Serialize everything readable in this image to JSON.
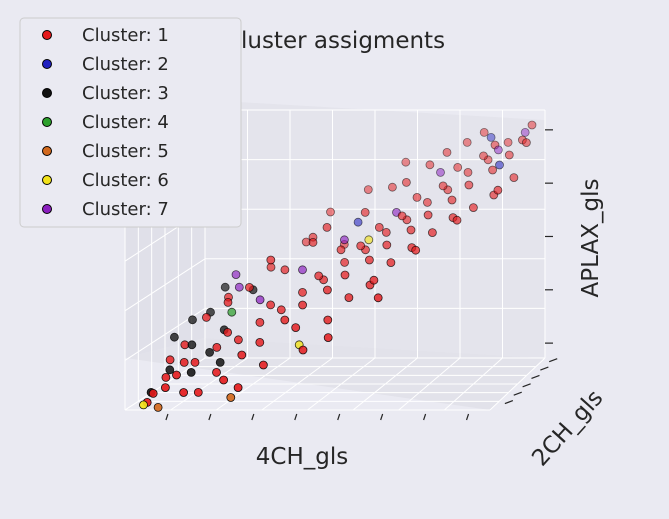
{
  "chart_data": {
    "type": "scatter",
    "projection": "3d",
    "title": "Cluster assigments",
    "xlabel": "4CH_gls",
    "ylabel": "2CH_gls",
    "zlabel": "APLAX_gls",
    "grid": true,
    "legend_position": "top-left",
    "legend": [
      {
        "label": "Cluster: 1",
        "color": "#e41a1c"
      },
      {
        "label": "Cluster: 2",
        "color": "#1f1fbf"
      },
      {
        "label": "Cluster: 3",
        "color": "#111111"
      },
      {
        "label": "Cluster: 4",
        "color": "#2ca02c"
      },
      {
        "label": "Cluster: 5",
        "color": "#d2691e"
      },
      {
        "label": "Cluster: 6",
        "color": "#f2e21a"
      },
      {
        "label": "Cluster: 7",
        "color": "#8b1fbf"
      }
    ],
    "points": [
      {
        "x": 0.05,
        "y": 0.05,
        "z": 0.02,
        "c": 1
      },
      {
        "x": 0.06,
        "y": 0.08,
        "z": 0.05,
        "c": 1
      },
      {
        "x": 0.1,
        "y": 0.05,
        "z": 0.08,
        "c": 1
      },
      {
        "x": 0.08,
        "y": 0.15,
        "z": 0.1,
        "c": 1
      },
      {
        "x": 0.12,
        "y": 0.1,
        "z": 0.12,
        "c": 1
      },
      {
        "x": 0.15,
        "y": 0.2,
        "z": 0.15,
        "c": 1
      },
      {
        "x": 0.18,
        "y": 0.1,
        "z": 0.05,
        "c": 1
      },
      {
        "x": 0.2,
        "y": 0.25,
        "z": 0.2,
        "c": 1
      },
      {
        "x": 0.22,
        "y": 0.15,
        "z": 0.12,
        "c": 1
      },
      {
        "x": 0.25,
        "y": 0.3,
        "z": 0.22,
        "c": 1
      },
      {
        "x": 0.28,
        "y": 0.2,
        "z": 0.18,
        "c": 1
      },
      {
        "x": 0.3,
        "y": 0.35,
        "z": 0.28,
        "c": 1
      },
      {
        "x": 0.32,
        "y": 0.25,
        "z": 0.22,
        "c": 1
      },
      {
        "x": 0.35,
        "y": 0.4,
        "z": 0.32,
        "c": 1
      },
      {
        "x": 0.38,
        "y": 0.3,
        "z": 0.3,
        "c": 1
      },
      {
        "x": 0.4,
        "y": 0.45,
        "z": 0.38,
        "c": 1
      },
      {
        "x": 0.42,
        "y": 0.35,
        "z": 0.35,
        "c": 1
      },
      {
        "x": 0.45,
        "y": 0.5,
        "z": 0.42,
        "c": 1
      },
      {
        "x": 0.48,
        "y": 0.4,
        "z": 0.4,
        "c": 1
      },
      {
        "x": 0.5,
        "y": 0.55,
        "z": 0.48,
        "c": 1
      },
      {
        "x": 0.52,
        "y": 0.45,
        "z": 0.45,
        "c": 1
      },
      {
        "x": 0.55,
        "y": 0.6,
        "z": 0.52,
        "c": 1
      },
      {
        "x": 0.58,
        "y": 0.5,
        "z": 0.5,
        "c": 1
      },
      {
        "x": 0.6,
        "y": 0.65,
        "z": 0.58,
        "c": 1
      },
      {
        "x": 0.62,
        "y": 0.55,
        "z": 0.55,
        "c": 1
      },
      {
        "x": 0.65,
        "y": 0.7,
        "z": 0.62,
        "c": 1
      },
      {
        "x": 0.68,
        "y": 0.6,
        "z": 0.6,
        "c": 1
      },
      {
        "x": 0.7,
        "y": 0.75,
        "z": 0.68,
        "c": 1
      },
      {
        "x": 0.72,
        "y": 0.65,
        "z": 0.65,
        "c": 1
      },
      {
        "x": 0.75,
        "y": 0.8,
        "z": 0.72,
        "c": 1
      },
      {
        "x": 0.78,
        "y": 0.7,
        "z": 0.7,
        "c": 1
      },
      {
        "x": 0.8,
        "y": 0.85,
        "z": 0.78,
        "c": 1
      },
      {
        "x": 0.82,
        "y": 0.75,
        "z": 0.75,
        "c": 1
      },
      {
        "x": 0.85,
        "y": 0.9,
        "z": 0.82,
        "c": 1
      },
      {
        "x": 0.88,
        "y": 0.8,
        "z": 0.8,
        "c": 1
      },
      {
        "x": 0.9,
        "y": 0.95,
        "z": 0.88,
        "c": 1
      },
      {
        "x": 0.92,
        "y": 0.85,
        "z": 0.85,
        "c": 1
      },
      {
        "x": 0.95,
        "y": 0.9,
        "z": 0.9,
        "c": 1
      },
      {
        "x": 0.97,
        "y": 0.95,
        "z": 0.95,
        "c": 1
      },
      {
        "x": 0.3,
        "y": 0.5,
        "z": 0.5,
        "c": 1
      },
      {
        "x": 0.4,
        "y": 0.6,
        "z": 0.55,
        "c": 1
      },
      {
        "x": 0.5,
        "y": 0.3,
        "z": 0.3,
        "c": 1
      },
      {
        "x": 0.55,
        "y": 0.35,
        "z": 0.38,
        "c": 1
      },
      {
        "x": 0.6,
        "y": 0.4,
        "z": 0.42,
        "c": 1
      },
      {
        "x": 0.65,
        "y": 0.45,
        "z": 0.5,
        "c": 1
      },
      {
        "x": 0.7,
        "y": 0.5,
        "z": 0.55,
        "c": 1
      },
      {
        "x": 0.75,
        "y": 0.55,
        "z": 0.6,
        "c": 1
      },
      {
        "x": 0.8,
        "y": 0.6,
        "z": 0.65,
        "c": 1
      },
      {
        "x": 0.35,
        "y": 0.15,
        "z": 0.15,
        "c": 1
      },
      {
        "x": 0.45,
        "y": 0.2,
        "z": 0.2,
        "c": 1
      },
      {
        "x": 0.25,
        "y": 0.45,
        "z": 0.4,
        "c": 1
      },
      {
        "x": 0.15,
        "y": 0.35,
        "z": 0.3,
        "c": 1
      },
      {
        "x": 0.2,
        "y": 0.4,
        "z": 0.35,
        "c": 1
      },
      {
        "x": 0.33,
        "y": 0.55,
        "z": 0.45,
        "c": 1
      },
      {
        "x": 0.43,
        "y": 0.65,
        "z": 0.6,
        "c": 1
      },
      {
        "x": 0.53,
        "y": 0.7,
        "z": 0.65,
        "c": 1
      },
      {
        "x": 0.63,
        "y": 0.8,
        "z": 0.75,
        "c": 1
      },
      {
        "x": 0.73,
        "y": 0.9,
        "z": 0.85,
        "c": 1
      },
      {
        "x": 0.83,
        "y": 0.95,
        "z": 0.92,
        "c": 1
      },
      {
        "x": 0.45,
        "y": 0.8,
        "z": 0.5,
        "c": 1
      },
      {
        "x": 0.9,
        "y": 0.7,
        "z": 0.72,
        "c": 1
      },
      {
        "x": 0.95,
        "y": 0.75,
        "z": 0.78,
        "c": 1
      },
      {
        "x": 0.85,
        "y": 0.65,
        "z": 0.68,
        "c": 1
      },
      {
        "x": 0.58,
        "y": 0.85,
        "z": 0.72,
        "c": 1
      },
      {
        "x": 0.68,
        "y": 0.9,
        "z": 0.8,
        "c": 1
      },
      {
        "x": 0.78,
        "y": 0.95,
        "z": 0.88,
        "c": 1
      },
      {
        "x": 0.38,
        "y": 0.7,
        "z": 0.55,
        "c": 1
      },
      {
        "x": 0.28,
        "y": 0.6,
        "z": 0.45,
        "c": 1
      },
      {
        "x": 0.18,
        "y": 0.5,
        "z": 0.35,
        "c": 1
      },
      {
        "x": 0.1,
        "y": 0.3,
        "z": 0.2,
        "c": 1
      },
      {
        "x": 0.07,
        "y": 0.25,
        "z": 0.15,
        "c": 1
      },
      {
        "x": 0.5,
        "y": 0.9,
        "z": 0.7,
        "c": 1
      },
      {
        "x": 0.6,
        "y": 0.95,
        "z": 0.8,
        "c": 1
      },
      {
        "x": 0.42,
        "y": 0.25,
        "z": 0.28,
        "c": 1
      },
      {
        "x": 0.62,
        "y": 0.35,
        "z": 0.45,
        "c": 1
      },
      {
        "x": 0.72,
        "y": 0.45,
        "z": 0.55,
        "c": 1
      },
      {
        "x": 0.82,
        "y": 0.55,
        "z": 0.65,
        "c": 1
      },
      {
        "x": 0.92,
        "y": 0.65,
        "z": 0.75,
        "c": 1
      },
      {
        "x": 0.35,
        "y": 0.75,
        "z": 0.52,
        "c": 1
      },
      {
        "x": 0.25,
        "y": 0.1,
        "z": 0.1,
        "c": 1
      },
      {
        "x": 0.15,
        "y": 0.05,
        "z": 0.06,
        "c": 1
      },
      {
        "x": 0.48,
        "y": 0.6,
        "z": 0.52,
        "c": 1
      },
      {
        "x": 0.58,
        "y": 0.65,
        "z": 0.6,
        "c": 1
      },
      {
        "x": 0.67,
        "y": 0.75,
        "z": 0.7,
        "c": 1
      },
      {
        "x": 0.77,
        "y": 0.85,
        "z": 0.8,
        "c": 1
      },
      {
        "x": 0.87,
        "y": 0.9,
        "z": 0.88,
        "c": 1
      },
      {
        "x": 0.97,
        "y": 0.85,
        "z": 0.9,
        "c": 1
      },
      {
        "x": 0.52,
        "y": 0.2,
        "z": 0.25,
        "c": 1
      },
      {
        "x": 0.32,
        "y": 0.4,
        "z": 0.34,
        "c": 1
      },
      {
        "x": 0.22,
        "y": 0.3,
        "z": 0.25,
        "c": 1
      },
      {
        "x": 0.12,
        "y": 0.2,
        "z": 0.15,
        "c": 1
      },
      {
        "x": 0.44,
        "y": 0.48,
        "z": 0.44,
        "c": 1
      },
      {
        "x": 0.54,
        "y": 0.58,
        "z": 0.54,
        "c": 1
      },
      {
        "x": 0.64,
        "y": 0.68,
        "z": 0.64,
        "c": 1
      },
      {
        "x": 0.74,
        "y": 0.78,
        "z": 0.74,
        "c": 1
      },
      {
        "x": 0.84,
        "y": 0.88,
        "z": 0.84,
        "c": 1
      },
      {
        "x": 0.4,
        "y": 0.85,
        "z": 0.62,
        "c": 1
      },
      {
        "x": 0.3,
        "y": 0.05,
        "z": 0.08,
        "c": 1
      },
      {
        "x": 0.65,
        "y": 0.25,
        "z": 0.4,
        "c": 1
      },
      {
        "x": 0.5,
        "y": 0.75,
        "z": 0.6,
        "c": 2
      },
      {
        "x": 0.85,
        "y": 0.95,
        "z": 0.9,
        "c": 2
      },
      {
        "x": 0.9,
        "y": 0.8,
        "z": 0.82,
        "c": 2
      },
      {
        "x": 0.05,
        "y": 0.1,
        "z": 0.05,
        "c": 3
      },
      {
        "x": 0.08,
        "y": 0.2,
        "z": 0.12,
        "c": 3
      },
      {
        "x": 0.12,
        "y": 0.3,
        "z": 0.2,
        "c": 3
      },
      {
        "x": 0.15,
        "y": 0.15,
        "z": 0.12,
        "c": 3
      },
      {
        "x": 0.18,
        "y": 0.25,
        "z": 0.18,
        "c": 3
      },
      {
        "x": 0.2,
        "y": 0.35,
        "z": 0.25,
        "c": 3
      },
      {
        "x": 0.1,
        "y": 0.4,
        "z": 0.28,
        "c": 3
      },
      {
        "x": 0.14,
        "y": 0.45,
        "z": 0.3,
        "c": 3
      },
      {
        "x": 0.22,
        "y": 0.2,
        "z": 0.15,
        "c": 3
      },
      {
        "x": 0.06,
        "y": 0.35,
        "z": 0.22,
        "c": 3
      },
      {
        "x": 0.25,
        "y": 0.5,
        "z": 0.38,
        "c": 3
      },
      {
        "x": 0.16,
        "y": 0.55,
        "z": 0.38,
        "c": 3
      },
      {
        "x": 0.2,
        "y": 0.45,
        "z": 0.3,
        "c": 4
      },
      {
        "x": 0.08,
        "y": 0.05,
        "z": 0.0,
        "c": 5
      },
      {
        "x": 0.28,
        "y": 0.05,
        "z": 0.04,
        "c": 5
      },
      {
        "x": 0.04,
        "y": 0.05,
        "z": 0.01,
        "c": 6
      },
      {
        "x": 0.42,
        "y": 0.3,
        "z": 0.2,
        "c": 6
      },
      {
        "x": 0.55,
        "y": 0.65,
        "z": 0.55,
        "c": 6
      },
      {
        "x": 0.2,
        "y": 0.55,
        "z": 0.38,
        "c": 7
      },
      {
        "x": 0.28,
        "y": 0.45,
        "z": 0.35,
        "c": 7
      },
      {
        "x": 0.38,
        "y": 0.55,
        "z": 0.45,
        "c": 7
      },
      {
        "x": 0.48,
        "y": 0.65,
        "z": 0.55,
        "c": 7
      },
      {
        "x": 0.62,
        "y": 0.7,
        "z": 0.65,
        "c": 7
      },
      {
        "x": 0.72,
        "y": 0.85,
        "z": 0.78,
        "c": 7
      },
      {
        "x": 0.88,
        "y": 0.9,
        "z": 0.86,
        "c": 7
      },
      {
        "x": 0.95,
        "y": 0.95,
        "z": 0.92,
        "c": 7
      },
      {
        "x": 0.18,
        "y": 0.6,
        "z": 0.42,
        "c": 7
      }
    ]
  }
}
